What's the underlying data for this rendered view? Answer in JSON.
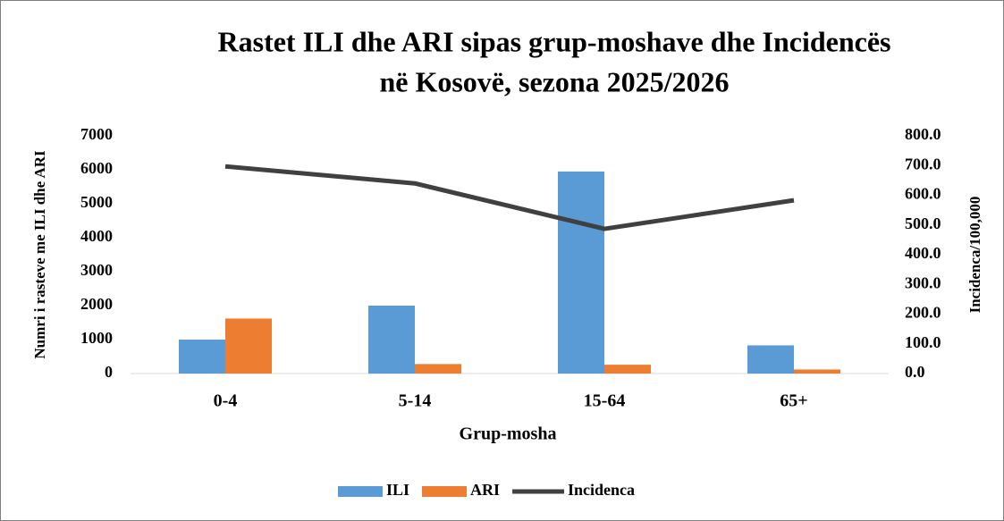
{
  "chart_data": {
    "type": "bar",
    "title": "Rastet ILI dhe ARI sipas grup-moshave dhe Incidencës",
    "subtitle": "në Kosovë, sezona 2025/2026",
    "x_label": "Grup-mosha",
    "y_label": "Numri i rasteve me ILI dhe ARI",
    "y2_label": "Incidenca/100,000",
    "categories": [
      "0-4",
      "5-14",
      "15-64",
      "65+"
    ],
    "series": [
      {
        "name": "ILI",
        "color": "#5b9bd5",
        "type": "bar",
        "values": [
          1000,
          2000,
          5950,
          830
        ]
      },
      {
        "name": "ARI",
        "color": "#ed7d31",
        "type": "bar",
        "values": [
          1620,
          280,
          260,
          120
        ]
      },
      {
        "name": "Incidenca",
        "color": "#404040",
        "type": "line",
        "axis": "y2",
        "values": [
          697,
          640,
          487,
          583
        ]
      }
    ],
    "ylim": [
      0,
      7000
    ],
    "yticks": [
      0,
      1000,
      2000,
      3000,
      4000,
      5000,
      6000,
      7000
    ],
    "y2lim": [
      0,
      800
    ],
    "y2ticks": [
      {
        "value": 0,
        "label": "0.0"
      },
      {
        "value": 100,
        "label": "100.0"
      },
      {
        "value": 200,
        "label": "200.0"
      },
      {
        "value": 300,
        "label": "300.0"
      },
      {
        "value": 400,
        "label": "400.0"
      },
      {
        "value": 500,
        "label": "500.0"
      },
      {
        "value": 600,
        "label": "600.0"
      },
      {
        "value": 700,
        "label": "700.0"
      },
      {
        "value": 800,
        "label": "800.0"
      }
    ],
    "legend": "bottom"
  }
}
